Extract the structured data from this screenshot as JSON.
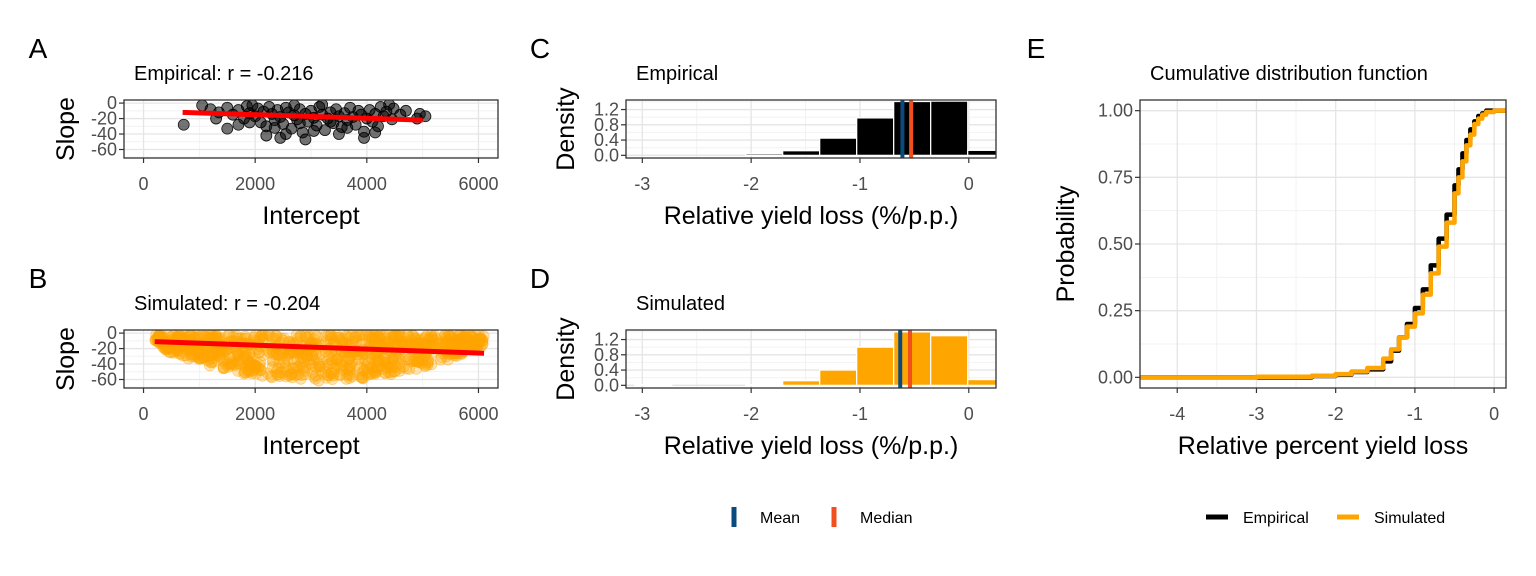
{
  "colors": {
    "empirical": "#000000",
    "simulated": "#FFA500",
    "fit_line": "#FF0000",
    "mean": "#0B4A7E",
    "median": "#F24E1E",
    "grid_major": "#E5E5E5",
    "grid_minor": "#F2F2F2",
    "panel_border": "#333333"
  },
  "chart_data": [
    {
      "id": "A",
      "panel_label": "A",
      "type": "scatter",
      "title": "Empirical: r = -0.216",
      "xlabel": "Intercept",
      "ylabel": "Slope",
      "xlim": [
        -350,
        6350
      ],
      "ylim": [
        -71,
        4
      ],
      "xticks": [
        0,
        2000,
        4000,
        6000
      ],
      "xtick_labels": [
        "0",
        "2000",
        "4000",
        "6000"
      ],
      "yticks": [
        0,
        -20,
        -40,
        -60
      ],
      "ytick_labels": [
        "0",
        "-20",
        "-40",
        "-60"
      ],
      "grid": true,
      "point_color": "empirical",
      "point_alpha": 0.55,
      "points": [
        [
          1050,
          -3
        ],
        [
          1200,
          -8
        ],
        [
          1350,
          -12
        ],
        [
          1500,
          -6
        ],
        [
          1600,
          -15
        ],
        [
          1700,
          -9
        ],
        [
          1800,
          -20
        ],
        [
          1850,
          -4
        ],
        [
          1900,
          -13
        ],
        [
          2000,
          -17
        ],
        [
          2050,
          -7
        ],
        [
          2100,
          -25
        ],
        [
          2150,
          -11
        ],
        [
          2200,
          -30
        ],
        [
          2250,
          -5
        ],
        [
          2300,
          -14
        ],
        [
          2350,
          -22
        ],
        [
          2400,
          -9
        ],
        [
          2450,
          -18
        ],
        [
          2500,
          -27
        ],
        [
          2550,
          -6
        ],
        [
          2600,
          -12
        ],
        [
          2650,
          -33
        ],
        [
          2700,
          -16
        ],
        [
          2750,
          -21
        ],
        [
          2800,
          -8
        ],
        [
          2850,
          -38
        ],
        [
          2900,
          -14
        ],
        [
          2950,
          -24
        ],
        [
          3000,
          -10
        ],
        [
          3050,
          -19
        ],
        [
          3100,
          -29
        ],
        [
          3150,
          -5
        ],
        [
          3200,
          -15
        ],
        [
          3250,
          -35
        ],
        [
          3300,
          -20
        ],
        [
          3350,
          -12
        ],
        [
          3400,
          -26
        ],
        [
          3450,
          -8
        ],
        [
          3500,
          -17
        ],
        [
          3550,
          -31
        ],
        [
          3600,
          -13
        ],
        [
          3650,
          -22
        ],
        [
          3700,
          -6
        ],
        [
          3750,
          -18
        ],
        [
          3800,
          -28
        ],
        [
          3850,
          -10
        ],
        [
          3900,
          -15
        ],
        [
          3950,
          -37
        ],
        [
          4000,
          -20
        ],
        [
          4050,
          -9
        ],
        [
          4100,
          -24
        ],
        [
          4150,
          -14
        ],
        [
          4200,
          -30
        ],
        [
          4250,
          -5
        ],
        [
          4300,
          -17
        ],
        [
          4350,
          -11
        ],
        [
          4400,
          -2
        ],
        [
          4450,
          -21
        ],
        [
          4480,
          -7
        ],
        [
          1300,
          -20
        ],
        [
          1500,
          -33
        ],
        [
          1700,
          -28
        ],
        [
          2200,
          -42
        ],
        [
          2450,
          -45
        ],
        [
          2700,
          -3
        ],
        [
          2900,
          -47
        ],
        [
          3200,
          -2
        ],
        [
          3500,
          -40
        ],
        [
          3950,
          -45
        ],
        [
          4950,
          -14
        ],
        [
          5050,
          -17
        ],
        [
          4900,
          -20
        ],
        [
          720,
          -28
        ],
        [
          1950,
          -3
        ],
        [
          2550,
          -40
        ],
        [
          3050,
          -36
        ],
        [
          3650,
          -32
        ],
        [
          4150,
          -38
        ],
        [
          2350,
          -32
        ],
        [
          2800,
          -26
        ],
        [
          3350,
          -24
        ],
        [
          1900,
          -25
        ],
        [
          4600,
          -15
        ],
        [
          4700,
          -10
        ]
      ],
      "fit_line": {
        "x": [
          700,
          5000
        ],
        "y": [
          -12,
          -22
        ]
      }
    },
    {
      "id": "B",
      "panel_label": "B",
      "type": "scatter",
      "title": "Simulated: r = -0.204",
      "xlabel": "Intercept",
      "ylabel": "Slope",
      "xlim": [
        -350,
        6350
      ],
      "ylim": [
        -71,
        4
      ],
      "xticks": [
        0,
        2000,
        4000,
        6000
      ],
      "xtick_labels": [
        "0",
        "2000",
        "4000",
        "6000"
      ],
      "yticks": [
        0,
        -20,
        -40,
        -60
      ],
      "ytick_labels": [
        "0",
        "-20",
        "-40",
        "-60"
      ],
      "grid": true,
      "point_color": "simulated",
      "point_alpha": 0.3,
      "cloud": {
        "n": 900,
        "x_range": [
          200,
          6100
        ],
        "y_top": -2,
        "y_bottom_at_center": -62
      },
      "fit_line": {
        "x": [
          200,
          6100
        ],
        "y": [
          -11,
          -26
        ]
      }
    },
    {
      "id": "C",
      "panel_label": "C",
      "type": "bar",
      "title": "Empirical",
      "xlabel": "Relative yield loss (%/p.p.)",
      "ylabel": "Density",
      "xlim": [
        -3.15,
        0.25
      ],
      "ylim": [
        -0.07,
        1.45
      ],
      "xticks": [
        -3,
        -2,
        -1,
        0
      ],
      "xtick_labels": [
        "-3",
        "-2",
        "-1",
        "0"
      ],
      "yticks": [
        0.0,
        0.4,
        0.8,
        1.2
      ],
      "ytick_labels": [
        "0.0",
        "0.4",
        "0.8",
        "1.2"
      ],
      "grid": true,
      "bar_color": "empirical",
      "bin_width": 0.34,
      "bin_centers": [
        -2.9,
        -2.56,
        -2.22,
        -1.88,
        -1.54,
        -1.2,
        -0.86,
        -0.52,
        -0.18,
        0.16
      ],
      "values": [
        0.0,
        0.0,
        0.0,
        0.04,
        0.12,
        0.45,
        0.98,
        1.41,
        1.42,
        0.13
      ],
      "mean": -0.61,
      "median": -0.53
    },
    {
      "id": "D",
      "panel_label": "D",
      "type": "bar",
      "title": "Simulated",
      "xlabel": "Relative yield loss (%/p.p.)",
      "ylabel": "Density",
      "xlim": [
        -3.15,
        0.25
      ],
      "ylim": [
        -0.07,
        1.45
      ],
      "xticks": [
        -3,
        -2,
        -1,
        0
      ],
      "xtick_labels": [
        "-3",
        "-2",
        "-1",
        "0"
      ],
      "yticks": [
        0.0,
        0.4,
        0.8,
        1.2
      ],
      "ytick_labels": [
        "0.0",
        "0.4",
        "0.8",
        "1.2"
      ],
      "grid": true,
      "bar_color": "simulated",
      "bin_width": 0.34,
      "bin_centers": [
        -2.9,
        -2.56,
        -2.22,
        -1.88,
        -1.54,
        -1.2,
        -0.86,
        -0.52,
        -0.18,
        0.16
      ],
      "values": [
        0.02,
        0.0,
        0.0,
        0.02,
        0.12,
        0.4,
        1.0,
        1.4,
        1.3,
        0.15
      ],
      "mean": -0.63,
      "median": -0.54
    },
    {
      "id": "E",
      "panel_label": "E",
      "type": "line",
      "title": "Cumulative distribution function",
      "xlabel": "Relative percent yield loss",
      "ylabel": "Probability",
      "xlim": [
        -4.47,
        0.15
      ],
      "ylim": [
        -0.04,
        1.04
      ],
      "xticks": [
        -4,
        -3,
        -2,
        -1,
        0
      ],
      "xtick_labels": [
        "-4",
        "-3",
        "-2",
        "-1",
        "0"
      ],
      "yticks": [
        0,
        0.25,
        0.5,
        0.75,
        1
      ],
      "ytick_labels": [
        "0.00",
        "0.25",
        "0.50",
        "0.75",
        "1.00"
      ],
      "grid": true,
      "series": [
        {
          "name": "Empirical",
          "color": "empirical",
          "x": [
            -4.47,
            -3.0,
            -2.3,
            -2.0,
            -1.8,
            -1.6,
            -1.4,
            -1.3,
            -1.2,
            -1.1,
            -1.0,
            -0.9,
            -0.8,
            -0.7,
            -0.6,
            -0.5,
            -0.45,
            -0.4,
            -0.35,
            -0.3,
            -0.25,
            -0.2,
            -0.15,
            -0.1,
            0.0,
            0.15
          ],
          "y": [
            0.0,
            0.0,
            0.005,
            0.01,
            0.02,
            0.03,
            0.06,
            0.1,
            0.15,
            0.2,
            0.26,
            0.33,
            0.42,
            0.52,
            0.61,
            0.72,
            0.78,
            0.84,
            0.89,
            0.93,
            0.96,
            0.98,
            0.99,
            1.0,
            1.0,
            1.0
          ]
        },
        {
          "name": "Simulated",
          "color": "simulated",
          "x": [
            -4.47,
            -3.0,
            -2.3,
            -2.0,
            -1.8,
            -1.6,
            -1.4,
            -1.3,
            -1.2,
            -1.1,
            -1.0,
            -0.9,
            -0.8,
            -0.7,
            -0.6,
            -0.5,
            -0.45,
            -0.4,
            -0.35,
            -0.3,
            -0.25,
            -0.2,
            -0.15,
            -0.1,
            0.0,
            0.15
          ],
          "y": [
            0.0,
            0.002,
            0.006,
            0.012,
            0.022,
            0.035,
            0.07,
            0.105,
            0.15,
            0.19,
            0.24,
            0.31,
            0.39,
            0.49,
            0.58,
            0.69,
            0.75,
            0.81,
            0.87,
            0.91,
            0.95,
            0.97,
            0.985,
            0.995,
            1.0,
            1.0
          ]
        }
      ]
    }
  ],
  "legends": {
    "mean_median": {
      "items": [
        {
          "label": "Mean",
          "color": "mean"
        },
        {
          "label": "Median",
          "color": "median"
        }
      ]
    },
    "cdf": {
      "items": [
        {
          "label": "Empirical",
          "color": "empirical"
        },
        {
          "label": "Simulated",
          "color": "simulated"
        }
      ]
    }
  }
}
